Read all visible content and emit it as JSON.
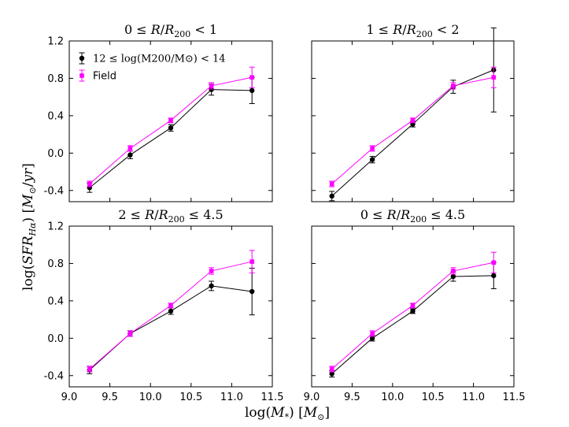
{
  "figure": {
    "xlabel": "log(M_*) [M_⊙]",
    "ylabel": "log(SFR_Hα) [M_⊙/yr]"
  },
  "legend": {
    "group_label": "12 ≤ log(M200/M⊙) < 14",
    "field_label": "Field"
  },
  "colors": {
    "group": "#000000",
    "field": "#ff00ff"
  },
  "chart_data": [
    {
      "type": "line",
      "title": "0 ≤ R/R200 < 1",
      "x": [
        9.25,
        9.75,
        10.25,
        10.75,
        11.25
      ],
      "xlim": [
        9.0,
        11.5
      ],
      "ylim": [
        -0.52,
        1.2
      ],
      "xticks": [
        "9.0",
        "9.5",
        "10.0",
        "10.5",
        "11.0",
        "11.5"
      ],
      "yticks": [
        "-0.4",
        "0.0",
        "0.4",
        "0.8",
        "1.2"
      ],
      "series": [
        {
          "name": "12 ≤ log(M200/M⊙) < 14",
          "values": [
            -0.37,
            -0.02,
            0.27,
            0.68,
            0.67
          ],
          "errors": [
            0.05,
            0.04,
            0.035,
            0.06,
            0.14
          ]
        },
        {
          "name": "Field",
          "values": [
            -0.33,
            0.05,
            0.35,
            0.72,
            0.81
          ],
          "errors": [
            0.03,
            0.03,
            0.025,
            0.035,
            0.11
          ]
        }
      ]
    },
    {
      "type": "line",
      "title": "1 ≤ R/R200 < 2",
      "x": [
        9.25,
        9.75,
        10.25,
        10.75,
        11.25
      ],
      "xlim": [
        9.0,
        11.5
      ],
      "ylim": [
        -0.52,
        1.2
      ],
      "xticks": [
        "9.0",
        "9.5",
        "10.0",
        "10.5",
        "11.0",
        "11.5"
      ],
      "yticks": [
        "-0.4",
        "0.0",
        "0.4",
        "0.8",
        "1.2"
      ],
      "series": [
        {
          "name": "12 ≤ log(M200/M⊙) < 14",
          "values": [
            -0.46,
            -0.07,
            0.31,
            0.71,
            0.89
          ],
          "errors": [
            0.05,
            0.035,
            0.03,
            0.07,
            0.45
          ]
        },
        {
          "name": "Field",
          "values": [
            -0.33,
            0.05,
            0.35,
            0.72,
            0.81
          ],
          "errors": [
            0.03,
            0.03,
            0.025,
            0.035,
            0.11
          ]
        }
      ]
    },
    {
      "type": "line",
      "title": "2 ≤ R/R200 ≤ 4.5",
      "x": [
        9.25,
        9.75,
        10.25,
        10.75,
        11.25
      ],
      "xlim": [
        9.0,
        11.5
      ],
      "ylim": [
        -0.52,
        1.2
      ],
      "xticks": [
        "9.0",
        "9.5",
        "10.0",
        "10.5",
        "11.0",
        "11.5"
      ],
      "yticks": [
        "-0.4",
        "0.0",
        "0.4",
        "0.8",
        "1.2"
      ],
      "series": [
        {
          "name": "12 ≤ log(M200/M⊙) < 14",
          "values": [
            -0.34,
            0.05,
            0.29,
            0.56,
            0.5
          ],
          "errors": [
            0.04,
            0.03,
            0.035,
            0.05,
            0.25
          ]
        },
        {
          "name": "Field",
          "values": [
            -0.33,
            0.05,
            0.35,
            0.72,
            0.82
          ],
          "errors": [
            0.03,
            0.03,
            0.025,
            0.035,
            0.12
          ]
        }
      ]
    },
    {
      "type": "line",
      "title": "0 ≤ R/R200 ≤ 4.5",
      "x": [
        9.25,
        9.75,
        10.25,
        10.75,
        11.25
      ],
      "xlim": [
        9.0,
        11.5
      ],
      "ylim": [
        -0.52,
        1.2
      ],
      "xticks": [
        "9.0",
        "9.5",
        "10.0",
        "10.5",
        "11.0",
        "11.5"
      ],
      "yticks": [
        "-0.4",
        "0.0",
        "0.4",
        "0.8",
        "1.2"
      ],
      "series": [
        {
          "name": "12 ≤ log(M200/M⊙) < 14",
          "values": [
            -0.38,
            0.0,
            0.29,
            0.66,
            0.67
          ],
          "errors": [
            0.035,
            0.03,
            0.025,
            0.05,
            0.14
          ]
        },
        {
          "name": "Field",
          "values": [
            -0.33,
            0.05,
            0.35,
            0.72,
            0.81
          ],
          "errors": [
            0.03,
            0.03,
            0.025,
            0.035,
            0.11
          ]
        }
      ]
    }
  ]
}
